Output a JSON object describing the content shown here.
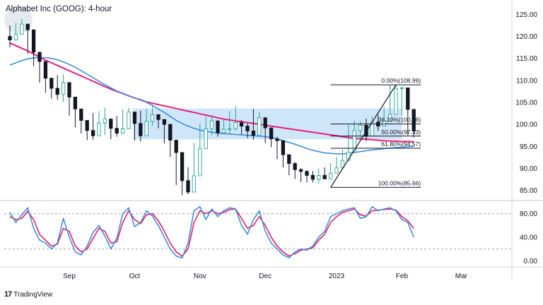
{
  "title": "Alphabet Inc (GOOG): 4-hour",
  "brand": {
    "mark": "17",
    "name": "TradingView"
  },
  "colors": {
    "up": "#26a69a",
    "down": "#131722",
    "candle_fill": "#ffffff",
    "ma_slow": "#e91e7a",
    "ma_fast": "#3d8fe0",
    "zone": "#bfdcf5",
    "fib": "#131722",
    "grid": "#e6e6e6",
    "stoch_k": "#3d8fe0",
    "stoch_d": "#e91e63"
  },
  "chart_data": [
    {
      "type": "candlestick",
      "name": "price",
      "ylim": [
        83,
        127
      ],
      "yticks": [
        "125.00",
        "120.00",
        "115.00",
        "110.00",
        "105.00",
        "100.00",
        "95.00",
        "90.00",
        "85.00"
      ],
      "ytick_values": [
        125,
        120,
        115,
        110,
        105,
        100,
        95,
        90,
        85
      ],
      "xticks": [
        "Sep",
        "Oct",
        "Nov",
        "Dec",
        "2023",
        "Feb",
        "Mar"
      ],
      "xtick_index": [
        10,
        21,
        32,
        43,
        55,
        66,
        76
      ],
      "close": [
        119.2,
        120.5,
        122.8,
        121.5,
        116.4,
        114.3,
        110.5,
        108.2,
        106.8,
        109.5,
        106.2,
        103.5,
        100.9,
        98.6,
        97.4,
        100.3,
        101.2,
        99.1,
        98.0,
        99.0,
        102.8,
        100.2,
        97.4,
        100.7,
        102.2,
        101.1,
        100.0,
        96.4,
        93.6,
        87.2,
        84.6,
        88.3,
        94.5,
        99.0,
        100.8,
        98.1,
        98.9,
        99.0,
        100.4,
        99.6,
        98.5,
        97.5,
        101.5,
        99.2,
        96.7,
        96.3,
        93.1,
        91.1,
        89.7,
        89.3,
        88.4,
        87.5,
        88.4,
        87.6,
        88.9,
        90.1,
        91.8,
        93.7,
        98.6,
        99.8,
        97.3,
        100.5,
        99.6,
        100.8,
        102.3,
        108.2,
        108.3,
        103.4,
        98.5
      ],
      "wick_high": [
        122.5,
        123.1,
        124.0,
        122.5,
        119.0,
        115.8,
        112.0,
        110.0,
        111.2,
        111.4,
        108.0,
        104.5,
        102.8,
        100.5,
        102.6,
        103.0,
        103.8,
        101.4,
        101.9,
        103.4,
        103.8,
        101.6,
        103.1,
        103.6,
        104.5,
        102.1,
        101.2,
        98.9,
        94.5,
        89.5,
        90.2,
        95.7,
        100.2,
        101.7,
        102.1,
        100.5,
        101.0,
        103.0,
        104.2,
        101.0,
        100.2,
        103.5,
        102.8,
        100.4,
        98.0,
        97.2,
        94.5,
        92.6,
        91.4,
        90.1,
        89.6,
        89.4,
        90.0,
        90.2,
        91.2,
        92.6,
        94.3,
        100.0,
        100.8,
        100.7,
        101.3,
        101.8,
        102.2,
        104.0,
        109.0,
        109.1,
        108.5,
        104.0,
        99.6
      ],
      "wick_low": [
        117.5,
        119.0,
        120.5,
        116.0,
        113.2,
        109.5,
        107.2,
        105.9,
        105.6,
        105.1,
        102.0,
        99.3,
        97.9,
        96.4,
        96.5,
        98.8,
        97.6,
        96.6,
        97.2,
        97.9,
        98.9,
        96.3,
        96.1,
        99.7,
        99.7,
        99.1,
        95.7,
        92.6,
        86.2,
        83.9,
        84.1,
        87.6,
        93.2,
        97.4,
        97.5,
        97.2,
        98.1,
        97.9,
        98.5,
        97.7,
        96.9,
        96.5,
        98.1,
        95.7,
        94.8,
        92.1,
        90.2,
        88.4,
        87.6,
        86.9,
        86.8,
        86.8,
        86.5,
        87.5,
        87.8,
        89.1,
        91.0,
        92.9,
        96.7,
        96.5,
        96.2,
        98.8,
        98.5,
        99.5,
        101.4,
        102.6,
        102.1,
        97.5,
        97.0
      ],
      "ma_slow": [
        118.5,
        117.9,
        117.3,
        116.7,
        116.0,
        115.3,
        114.6,
        114.0,
        113.4,
        112.8,
        112.2,
        111.6,
        111.0,
        110.4,
        109.8,
        109.2,
        108.6,
        108.0,
        107.5,
        107.0,
        106.5,
        106.0,
        105.6,
        105.1,
        104.8,
        104.5,
        104.2,
        103.9,
        103.6,
        103.3,
        103.0,
        102.7,
        102.4,
        102.1,
        101.8,
        101.5,
        101.2,
        101.0,
        100.8,
        100.6,
        100.4,
        100.2,
        100.0,
        99.8,
        99.6,
        99.4,
        99.2,
        99.0,
        98.8,
        98.6,
        98.4,
        98.2,
        98.0,
        97.8,
        97.6,
        97.4,
        97.2,
        97.0,
        96.8,
        96.7,
        96.6,
        96.5,
        96.4,
        96.3,
        96.2,
        96.2,
        96.1,
        96.1,
        96.0
      ],
      "ma_fast": [
        113.5,
        114.0,
        114.5,
        114.9,
        115.1,
        115.2,
        115.2,
        115.0,
        114.7,
        114.2,
        113.6,
        113.0,
        112.2,
        111.4,
        110.6,
        109.8,
        109.0,
        108.3,
        107.6,
        107.0,
        106.5,
        106.0,
        105.5,
        105.0,
        104.3,
        103.5,
        102.7,
        101.8,
        100.9,
        100.2,
        99.6,
        99.1,
        98.7,
        98.4,
        98.2,
        98.0,
        97.9,
        97.8,
        97.7,
        97.6,
        97.5,
        97.4,
        97.3,
        97.2,
        97.0,
        96.7,
        96.3,
        95.9,
        95.5,
        95.0,
        94.5,
        94.1,
        93.8,
        93.5,
        93.4,
        93.3,
        93.3,
        93.4,
        93.6,
        93.8,
        94.0,
        94.2,
        94.3,
        94.5,
        94.6,
        94.7,
        94.8,
        94.9,
        95.0
      ],
      "zone": {
        "from": 96.6,
        "to": 103.6
      },
      "trend_line": {
        "from": [
          54,
          85.66
        ],
        "to": [
          65,
          108.99
        ]
      },
      "fibonacci": [
        {
          "label": "0.00%(108.99)",
          "value": 108.99
        },
        {
          "label": "38.20%(100.08)",
          "value": 100.08
        },
        {
          "label": "50.00%(97.33)",
          "value": 97.33
        },
        {
          "label": "61.80%(94.57)",
          "value": 94.57
        },
        {
          "label": "100.00%(85.66)",
          "value": 85.66
        }
      ],
      "fib_start_index": 54
    },
    {
      "type": "line",
      "name": "stochastic",
      "ylim": [
        -8,
        100
      ],
      "yticks": [
        "80.00",
        "40.00",
        "0.00"
      ],
      "ytick_values": [
        80,
        40,
        0
      ],
      "series": [
        {
          "key": "k",
          "values": [
            82,
            65,
            78,
            90,
            55,
            35,
            30,
            20,
            30,
            72,
            40,
            15,
            10,
            25,
            48,
            60,
            42,
            20,
            38,
            80,
            90,
            58,
            65,
            85,
            76,
            60,
            40,
            20,
            8,
            5,
            30,
            85,
            92,
            70,
            88,
            75,
            85,
            90,
            88,
            60,
            45,
            70,
            85,
            50,
            30,
            20,
            10,
            5,
            15,
            20,
            18,
            25,
            40,
            50,
            75,
            80,
            85,
            88,
            90,
            72,
            75,
            92,
            85,
            88,
            90,
            85,
            70,
            65,
            40
          ]
        },
        {
          "key": "d",
          "values": [
            75,
            70,
            72,
            84,
            70,
            45,
            35,
            25,
            28,
            55,
            50,
            25,
            15,
            20,
            38,
            55,
            50,
            30,
            32,
            65,
            85,
            70,
            63,
            78,
            80,
            68,
            50,
            30,
            15,
            8,
            20,
            65,
            85,
            80,
            85,
            80,
            82,
            87,
            88,
            72,
            55,
            60,
            75,
            60,
            40,
            25,
            15,
            8,
            12,
            18,
            20,
            22,
            35,
            45,
            65,
            75,
            82,
            85,
            88,
            78,
            76,
            85,
            86,
            87,
            88,
            86,
            75,
            68,
            55
          ]
        }
      ]
    }
  ]
}
